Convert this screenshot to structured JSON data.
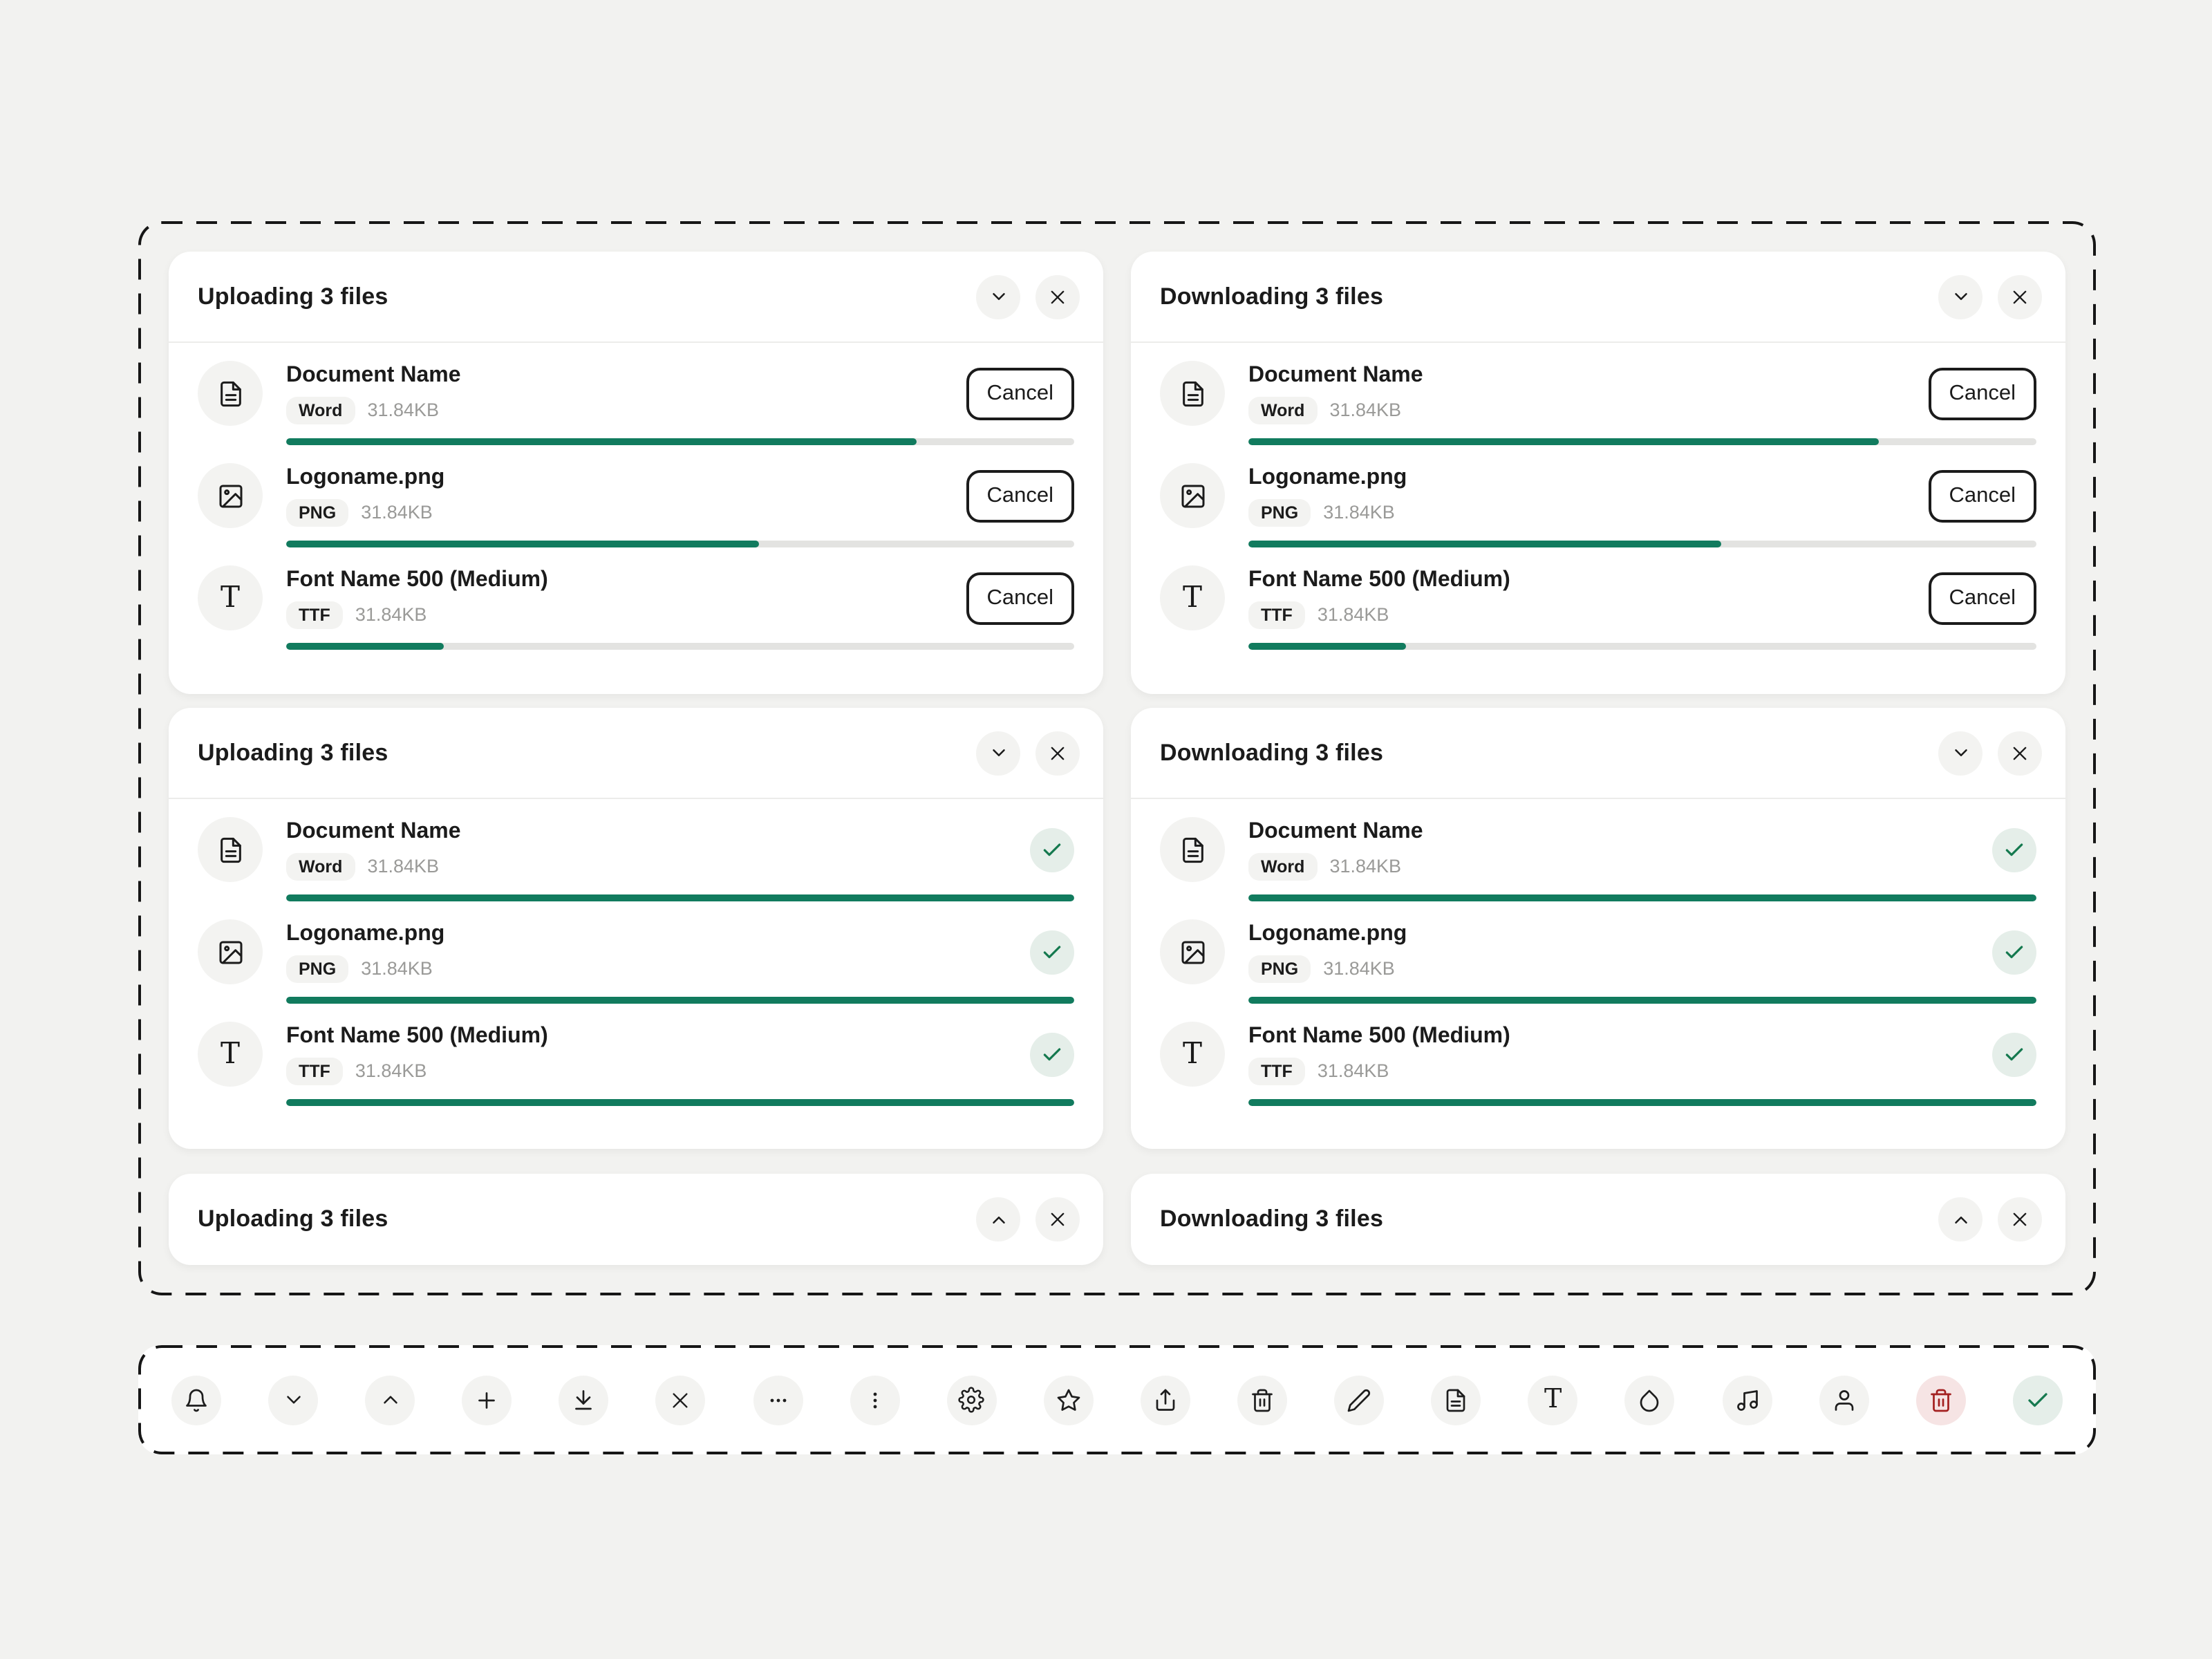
{
  "colors": {
    "page_background": "#F2F2F0",
    "progress_green": "#117B5E",
    "success_check": "#15794F",
    "success_background": "#E5EEE9",
    "danger_icon": "#A32020",
    "danger_background": "#F6E4E4"
  },
  "cards": {
    "upload_active": {
      "title": "Uploading 3 files",
      "collapse_icon": "chevron-down-icon",
      "close_icon": "close-icon",
      "files": [
        {
          "name": "Document Name",
          "type": "Word",
          "size": "31.84KB",
          "icon": "file-text-icon",
          "progress": 80,
          "action_label": "Cancel"
        },
        {
          "name": "Logoname.png",
          "type": "PNG",
          "size": "31.84KB",
          "icon": "image-icon",
          "progress": 60,
          "action_label": "Cancel"
        },
        {
          "name": "Font Name 500 (Medium)",
          "type": "TTF",
          "size": "31.84KB",
          "icon": "type-icon",
          "progress": 20,
          "action_label": "Cancel"
        }
      ]
    },
    "download_active": {
      "title": "Downloading 3 files",
      "collapse_icon": "chevron-down-icon",
      "close_icon": "close-icon",
      "files": [
        {
          "name": "Document Name",
          "type": "Word",
          "size": "31.84KB",
          "icon": "file-text-icon",
          "progress": 80,
          "action_label": "Cancel"
        },
        {
          "name": "Logoname.png",
          "type": "PNG",
          "size": "31.84KB",
          "icon": "image-icon",
          "progress": 60,
          "action_label": "Cancel"
        },
        {
          "name": "Font Name 500 (Medium)",
          "type": "TTF",
          "size": "31.84KB",
          "icon": "type-icon",
          "progress": 20,
          "action_label": "Cancel"
        }
      ]
    },
    "upload_complete": {
      "title": "Uploading 3 files",
      "collapse_icon": "chevron-down-icon",
      "close_icon": "close-icon",
      "files": [
        {
          "name": "Document Name",
          "type": "Word",
          "size": "31.84KB",
          "icon": "file-text-icon",
          "progress": 100,
          "status_icon": "check-icon"
        },
        {
          "name": "Logoname.png",
          "type": "PNG",
          "size": "31.84KB",
          "icon": "image-icon",
          "progress": 100,
          "status_icon": "check-icon"
        },
        {
          "name": "Font Name 500 (Medium)",
          "type": "TTF",
          "size": "31.84KB",
          "icon": "type-icon",
          "progress": 100,
          "status_icon": "check-icon"
        }
      ]
    },
    "download_complete": {
      "title": "Downloading 3 files",
      "collapse_icon": "chevron-down-icon",
      "close_icon": "close-icon",
      "files": [
        {
          "name": "Document Name",
          "type": "Word",
          "size": "31.84KB",
          "icon": "file-text-icon",
          "progress": 100,
          "status_icon": "check-icon"
        },
        {
          "name": "Logoname.png",
          "type": "PNG",
          "size": "31.84KB",
          "icon": "image-icon",
          "progress": 100,
          "status_icon": "check-icon"
        },
        {
          "name": "Font Name 500 (Medium)",
          "type": "TTF",
          "size": "31.84KB",
          "icon": "type-icon",
          "progress": 100,
          "status_icon": "check-icon"
        }
      ]
    },
    "upload_collapsed": {
      "title": "Uploading 3 files",
      "collapse_icon": "chevron-up-icon",
      "close_icon": "close-icon"
    },
    "download_collapsed": {
      "title": "Downloading 3 files",
      "collapse_icon": "chevron-up-icon",
      "close_icon": "close-icon"
    }
  },
  "toolbar": {
    "icons": [
      {
        "name": "bell-icon"
      },
      {
        "name": "chevron-down-icon"
      },
      {
        "name": "chevron-up-icon"
      },
      {
        "name": "plus-icon"
      },
      {
        "name": "download-icon"
      },
      {
        "name": "close-icon"
      },
      {
        "name": "more-horizontal-icon"
      },
      {
        "name": "more-vertical-icon"
      },
      {
        "name": "settings-icon"
      },
      {
        "name": "star-icon"
      },
      {
        "name": "share-icon"
      },
      {
        "name": "trash-icon"
      },
      {
        "name": "edit-icon"
      },
      {
        "name": "file-text-icon"
      },
      {
        "name": "type-icon"
      },
      {
        "name": "droplet-icon"
      },
      {
        "name": "music-icon"
      },
      {
        "name": "user-icon"
      },
      {
        "name": "trash-icon",
        "variant": "danger"
      },
      {
        "name": "check-icon",
        "variant": "success"
      }
    ]
  }
}
